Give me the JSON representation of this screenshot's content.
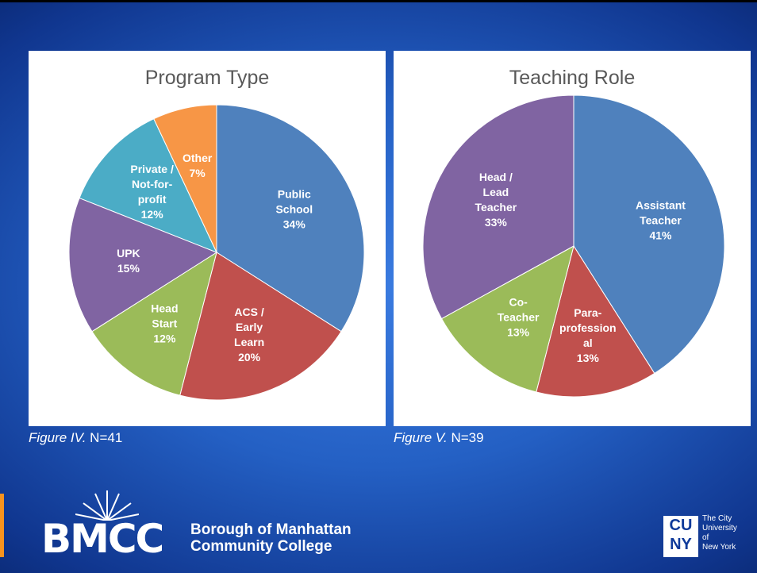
{
  "chart_data": [
    {
      "type": "pie",
      "title": "Program Type",
      "categories": [
        "Public\nSchool",
        "ACS /\nEarly\nLearn",
        "Head\nStart",
        "UPK",
        "Private /\nNot-for-\nprofit",
        "Other"
      ],
      "values": [
        34,
        20,
        12,
        15,
        12,
        7
      ],
      "value_labels": [
        "34%",
        "20%",
        "12%",
        "15%",
        "12%",
        "7%"
      ],
      "colors": [
        "#4f81bd",
        "#c0504d",
        "#9bbb59",
        "#8064a2",
        "#4bacc6",
        "#f79646"
      ],
      "caption": {
        "figure": "Figure IV.",
        "note": "N=41"
      }
    },
    {
      "type": "pie",
      "title": "Teaching Role",
      "categories": [
        "Assistant\nTeacher",
        "Para-\nprofession\nal",
        "Co-\nTeacher",
        "Head /\nLead\nTeacher"
      ],
      "values": [
        41,
        13,
        13,
        33
      ],
      "value_labels": [
        "41%",
        "13%",
        "13%",
        "33%"
      ],
      "colors": [
        "#4f81bd",
        "#c0504d",
        "#9bbb59",
        "#8064a2"
      ],
      "caption": {
        "figure": "Figure V.",
        "note": "N=39"
      }
    }
  ],
  "footer": {
    "logo": "BMCC",
    "college": "Borough of Manhattan\nCommunity College",
    "cuny_top": "CU",
    "cuny_bottom": "NY",
    "cuny_name": "The City\nUniversity\nof\nNew York"
  }
}
